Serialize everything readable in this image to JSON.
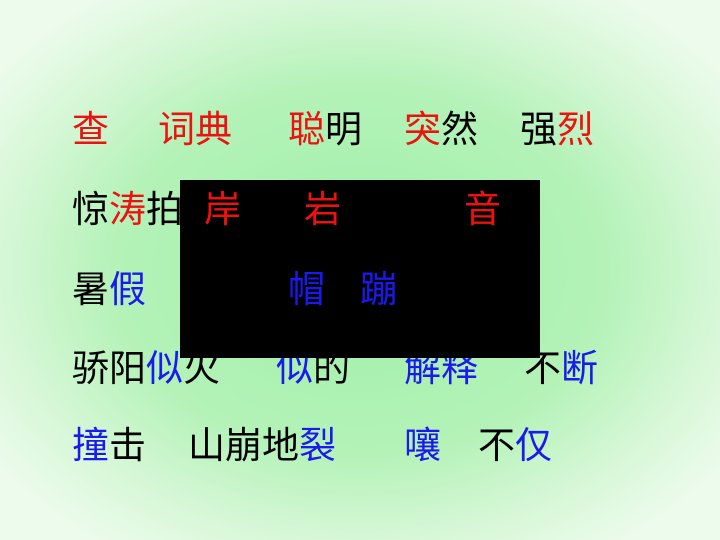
{
  "colors": {
    "background": "#a8f0b0",
    "red": "#ee1111",
    "blue": "#1a1aee",
    "black": "#000000",
    "overlay": "#000000"
  },
  "rows": [
    {
      "words": [
        {
          "segments": [
            {
              "text": "查",
              "color": "red"
            }
          ]
        },
        {
          "segments": [
            {
              "text": "词典",
              "color": "red"
            }
          ]
        },
        {
          "segments": [
            {
              "text": "聪",
              "color": "red"
            },
            {
              "text": "明",
              "color": "black"
            }
          ]
        },
        {
          "segments": [
            {
              "text": "突",
              "color": "red"
            },
            {
              "text": "然",
              "color": "black"
            }
          ]
        },
        {
          "segments": [
            {
              "text": "强",
              "color": "black"
            },
            {
              "text": "烈",
              "color": "red"
            }
          ]
        }
      ]
    },
    {
      "words": [
        {
          "segments": [
            {
              "text": "惊",
              "color": "black"
            },
            {
              "text": "涛",
              "color": "red"
            },
            {
              "text": "拍",
              "color": "black"
            }
          ]
        }
      ]
    },
    {
      "words": [
        {
          "segments": [
            {
              "text": "暑",
              "color": "black"
            },
            {
              "text": "假",
              "color": "blue"
            }
          ]
        }
      ]
    },
    {
      "words": [
        {
          "segments": [
            {
              "text": "骄阳",
              "color": "black"
            },
            {
              "text": "似",
              "color": "blue"
            },
            {
              "text": "火",
              "color": "black"
            }
          ]
        },
        {
          "segments": [
            {
              "text": "似",
              "color": "blue"
            },
            {
              "text": "的",
              "color": "black"
            }
          ]
        },
        {
          "segments": [
            {
              "text": "解释",
              "color": "blue"
            }
          ]
        },
        {
          "segments": [
            {
              "text": "不",
              "color": "black"
            },
            {
              "text": "断",
              "color": "blue"
            }
          ]
        }
      ]
    },
    {
      "words": [
        {
          "segments": [
            {
              "text": "撞",
              "color": "blue"
            },
            {
              "text": "击",
              "color": "black"
            }
          ]
        },
        {
          "segments": [
            {
              "text": "山崩地",
              "color": "black"
            },
            {
              "text": "裂",
              "color": "blue"
            }
          ]
        },
        {
          "segments": [
            {
              "text": "嚷",
              "color": "blue"
            }
          ]
        },
        {
          "segments": [
            {
              "text": "不",
              "color": "black"
            },
            {
              "text": "仅",
              "color": "blue"
            }
          ]
        }
      ]
    }
  ],
  "overlay": {
    "words": [
      {
        "text": "岸",
        "color": "red"
      },
      {
        "text": "岩",
        "color": "red"
      },
      {
        "text": "音",
        "color": "red"
      },
      {
        "text": "帽",
        "color": "blue"
      },
      {
        "text": "蹦",
        "color": "blue"
      }
    ]
  }
}
